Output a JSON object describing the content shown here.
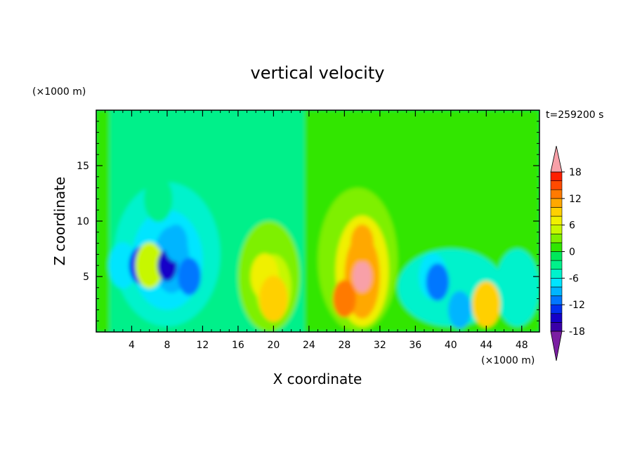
{
  "chart_data": {
    "type": "heatmap",
    "title": "vertical velocity",
    "xlabel": "X coordinate",
    "ylabel": "Z coordinate",
    "x_unit": "(×1000 m)",
    "y_unit": "(×1000 m)",
    "time_label": "t=259200 s",
    "xlim": [
      0,
      50
    ],
    "ylim": [
      0,
      20
    ],
    "x_ticks": [
      4,
      8,
      12,
      16,
      20,
      24,
      28,
      32,
      36,
      40,
      44,
      48
    ],
    "y_ticks": [
      5,
      10,
      15
    ],
    "colorbar": {
      "levels": [
        -20,
        -18,
        -16,
        -14,
        -12,
        -10,
        -8,
        -6,
        -4,
        -2,
        0,
        2,
        4,
        6,
        8,
        10,
        12,
        14,
        16,
        18,
        20
      ],
      "tick_labels": [
        "18",
        "12",
        "6",
        "0",
        "-6",
        "-12",
        "-18"
      ],
      "tick_values": [
        18,
        12,
        6,
        0,
        -6,
        -12,
        -18
      ],
      "colors": [
        "#7b1fa2",
        "#3a00a8",
        "#1500c8",
        "#0030f0",
        "#0077ff",
        "#00b5ff",
        "#00e5ff",
        "#00f2cc",
        "#00f08a",
        "#00e85a",
        "#30e600",
        "#7ef000",
        "#c7f700",
        "#f0f000",
        "#ffd000",
        "#ffa800",
        "#ff7a00",
        "#ff4a00",
        "#ff1e00",
        "#f8a0a8"
      ]
    },
    "cells": [
      {
        "x": 3,
        "z": 6,
        "w": -8
      },
      {
        "x": 5,
        "z": 6,
        "w": -14
      },
      {
        "x": 6,
        "z": 6,
        "w": 4
      },
      {
        "x": 8,
        "z": 6,
        "w": -16
      },
      {
        "x": 9,
        "z": 8,
        "w": -10
      },
      {
        "x": 10.5,
        "z": 5,
        "w": -12
      },
      {
        "x": 7,
        "z": 12,
        "w": -4
      },
      {
        "x": 19,
        "z": 5,
        "w": 6
      },
      {
        "x": 20,
        "z": 3,
        "w": 8
      },
      {
        "x": 30,
        "z": 5,
        "w": 18
      },
      {
        "x": 30,
        "z": 8,
        "w": 10
      },
      {
        "x": 28,
        "z": 3,
        "w": 12
      },
      {
        "x": 38,
        "z": 5,
        "w": -8
      },
      {
        "x": 38.5,
        "z": 4.5,
        "w": -12
      },
      {
        "x": 41,
        "z": 2,
        "w": -10
      },
      {
        "x": 44,
        "z": 2.5,
        "w": 8
      },
      {
        "x": 48,
        "z": 4,
        "w": -6
      }
    ]
  }
}
